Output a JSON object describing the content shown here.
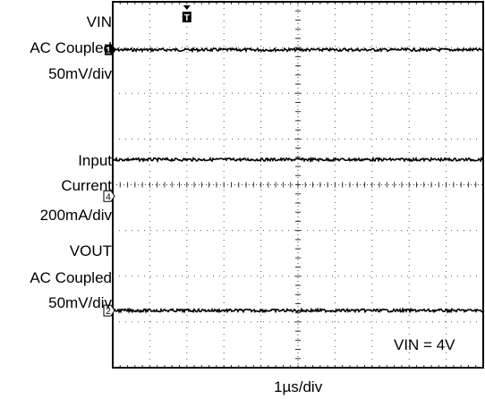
{
  "chart_data": {
    "type": "line",
    "title": "",
    "xlabel": "1µs/div",
    "ylabel": "",
    "grid": true,
    "grid_divisions": {
      "x": 10,
      "y": 8
    },
    "xlim": [
      0,
      10
    ],
    "ylim": [
      0,
      8
    ],
    "channels": [
      {
        "marker": "1",
        "label_lines": [
          "VIN",
          "AC Coupled",
          "50mV/div"
        ],
        "trace_level_div": 6.95,
        "values": [
          6.95,
          6.95,
          6.95,
          6.95,
          6.95,
          6.95,
          6.95,
          6.95,
          6.95,
          6.95,
          6.95
        ]
      },
      {
        "marker": "4",
        "label_lines": [
          "Input",
          "Current",
          "200mA/div"
        ],
        "ground_level_div": 3.75,
        "trace_level_div": 4.55,
        "values": [
          4.55,
          4.55,
          4.55,
          4.55,
          4.55,
          4.55,
          4.55,
          4.55,
          4.55,
          4.55,
          4.55
        ]
      },
      {
        "marker": "2",
        "label_lines": [
          "VOUT",
          "AC Coupled",
          "50mV/div"
        ],
        "trace_level_div": 1.25,
        "values": [
          1.25,
          1.25,
          1.25,
          1.25,
          1.25,
          1.25,
          1.25,
          1.25,
          1.25,
          1.25,
          1.25
        ]
      }
    ],
    "trigger": {
      "marker": "T",
      "position_div": 2.0
    },
    "annotations": [
      "VIN = 4V"
    ]
  }
}
